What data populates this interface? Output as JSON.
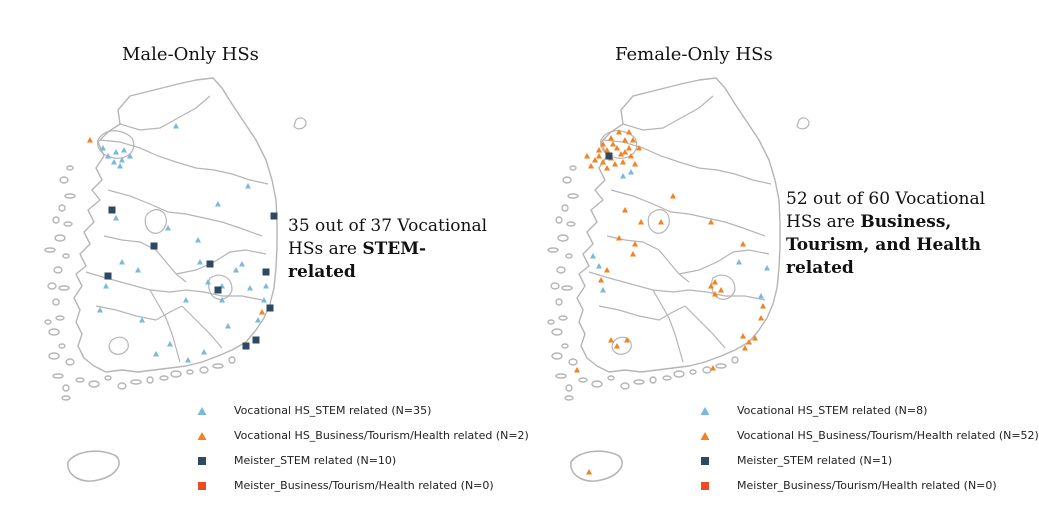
{
  "colors": {
    "vocational_stem": "#7ab8e0",
    "vocational_business": "#f5821f",
    "meister_stem": "#2e4a62",
    "meister_business": "#ef4b23",
    "map_outline": "#b5b5b5"
  },
  "panels": [
    {
      "title": "Male-Only HSs",
      "annotation": {
        "pre": "35 out of 37 Vocational HSs are ",
        "bold": "STEM-related",
        "post": ""
      },
      "legend": [
        {
          "icon": "triangle-icon",
          "label": "Vocational HS_STEM related (N=35)"
        },
        {
          "icon": "triangle-icon",
          "label": "Vocational HS_Business/Tourism/Health related (N=2)"
        },
        {
          "icon": "square-icon",
          "label": "Meister_STEM related (N=10)"
        },
        {
          "icon": "square-icon",
          "label": "Meister_Business/Tourism/Health related (N=0)"
        }
      ]
    },
    {
      "title": "Female-Only HSs",
      "annotation": {
        "pre": "52 out of 60 Vocational HSs are ",
        "bold": "Business, Tourism, and Health related",
        "post": ""
      },
      "legend": [
        {
          "icon": "triangle-icon",
          "label": "Vocational HS_STEM related (N=8)"
        },
        {
          "icon": "triangle-icon",
          "label": "Vocational HS_Business/Tourism/Health related (N=52)"
        },
        {
          "icon": "square-icon",
          "label": "Meister_STEM related (N=1)"
        },
        {
          "icon": "square-icon",
          "label": "Meister_Business/Tourism/Health related (N=0)"
        }
      ]
    }
  ]
}
